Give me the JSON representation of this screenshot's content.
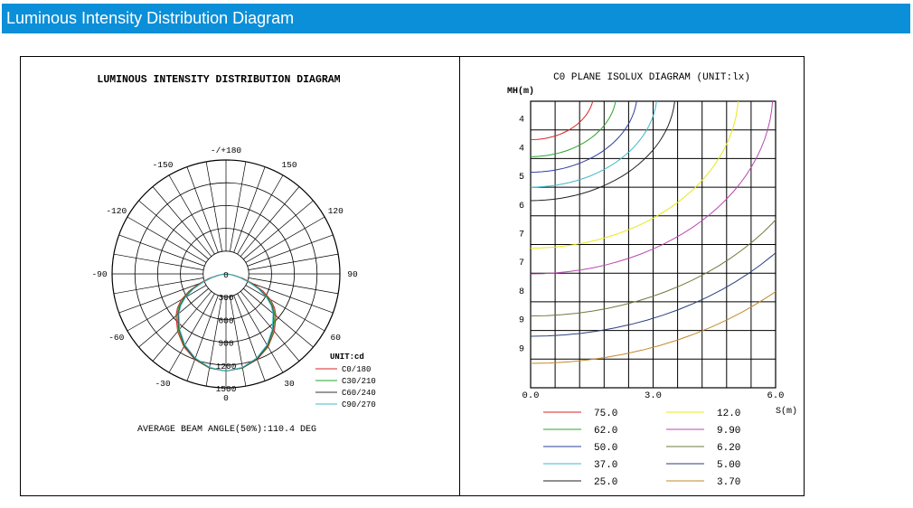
{
  "page_title": "Luminous Intensity Distribution  Diagram",
  "colors": {
    "header": "#0b8fd8"
  },
  "chart_data": [
    {
      "type": "polar",
      "title": "LUMINOUS INTENSITY DISTRIBUTION DIAGRAM",
      "footer": "AVERAGE BEAM ANGLE(50%):110.4 DEG",
      "unit_label": "UNIT:cd",
      "angle_labels": [
        {
          "deg": 180,
          "text": "-/+180"
        },
        {
          "deg": -150,
          "text": "-150"
        },
        {
          "deg": 150,
          "text": "150"
        },
        {
          "deg": -120,
          "text": "-120"
        },
        {
          "deg": 120,
          "text": "120"
        },
        {
          "deg": -90,
          "text": "-90"
        },
        {
          "deg": 90,
          "text": "90"
        },
        {
          "deg": -60,
          "text": "-60"
        },
        {
          "deg": 60,
          "text": "60"
        },
        {
          "deg": -30,
          "text": "-30"
        },
        {
          "deg": 30,
          "text": "30"
        },
        {
          "deg": 0,
          "text": "0"
        }
      ],
      "radial_labels": [
        "0",
        "300",
        "600",
        "900",
        "1200",
        "1500"
      ],
      "rmax": 1500,
      "series": [
        {
          "name": "C0/180",
          "color": "#d62424",
          "angles": [
            0,
            10,
            20,
            30,
            40,
            50,
            55,
            60,
            65,
            70,
            75,
            80,
            85,
            90
          ],
          "values": [
            1280,
            1260,
            1200,
            1110,
            990,
            860,
            780,
            680,
            540,
            380,
            230,
            110,
            30,
            0
          ]
        },
        {
          "name": "C30/210",
          "color": "#2aa52a",
          "angles": [
            0,
            10,
            20,
            30,
            40,
            50,
            55,
            60,
            65,
            70,
            75,
            80,
            85,
            90
          ],
          "values": [
            1280,
            1260,
            1195,
            1100,
            975,
            840,
            760,
            650,
            510,
            350,
            210,
            100,
            25,
            0
          ]
        },
        {
          "name": "C60/240",
          "color": "#333333",
          "angles": [
            0,
            10,
            20,
            30,
            40,
            50,
            55,
            60,
            65,
            70,
            75,
            80,
            85,
            90
          ],
          "values": [
            1280,
            1255,
            1190,
            1090,
            960,
            820,
            740,
            630,
            490,
            330,
            200,
            90,
            20,
            0
          ]
        },
        {
          "name": "C90/270",
          "color": "#3fb8c9",
          "angles": [
            0,
            10,
            20,
            30,
            40,
            50,
            55,
            60,
            65,
            70,
            75,
            80,
            85,
            90
          ],
          "values": [
            1280,
            1250,
            1180,
            1080,
            950,
            810,
            725,
            615,
            475,
            320,
            190,
            85,
            20,
            0
          ]
        }
      ]
    },
    {
      "type": "contour",
      "title": "C0 PLANE ISOLUX DIAGRAM (UNIT:lx)",
      "ylabel": "MH(m)",
      "xlabel": "S(m)",
      "x_tick_labels": [
        "0.0",
        "3.0",
        "6.0"
      ],
      "y_tick_labels": [
        "4",
        "4",
        "5",
        "6",
        "7",
        "7",
        "8",
        "9",
        "9"
      ],
      "legend": [
        {
          "value": "75.0",
          "color": "#d62424"
        },
        {
          "value": "62.0",
          "color": "#2aa52a"
        },
        {
          "value": "50.0",
          "color": "#2d3e9e"
        },
        {
          "value": "37.0",
          "color": "#3fb8c9"
        },
        {
          "value": "25.0",
          "color": "#222222"
        },
        {
          "value": "12.0",
          "color": "#e8e81a"
        },
        {
          "value": "9.90",
          "color": "#b848b0"
        },
        {
          "value": "6.20",
          "color": "#6b7d3a"
        },
        {
          "value": "5.00",
          "color": "#2a3e7a"
        },
        {
          "value": "3.70",
          "color": "#c08a2a"
        }
      ]
    }
  ]
}
